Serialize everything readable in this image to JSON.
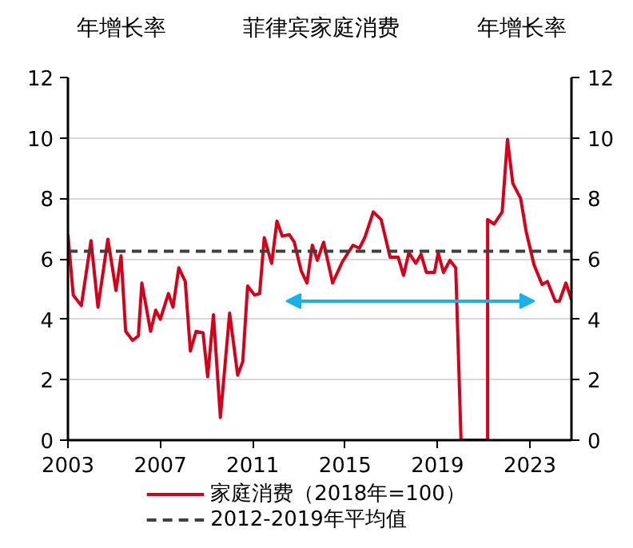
{
  "chart_data": {
    "type": "line",
    "title": "菲律宾家庭消费",
    "ylabel": "年增长率",
    "y2label": "年增长率",
    "xlim": [
      2003,
      2024.8
    ],
    "xticks": [
      2003,
      2007,
      2011,
      2015,
      2019,
      2023
    ],
    "ylim": [
      0,
      12
    ],
    "yticks": [
      0,
      2,
      4,
      6,
      8,
      10,
      12
    ],
    "y2lim": [
      0,
      12
    ],
    "y2ticks": [
      0,
      2,
      4,
      6,
      8,
      10,
      12
    ],
    "grid": "y",
    "legend": "bottom",
    "line_style": "solid",
    "marker": "none",
    "series": [
      {
        "name": "家庭消费（2018年=100）",
        "color": "#d7001b",
        "x": [
          2003.0,
          2003.23,
          2003.58,
          2004.0,
          2004.3,
          2004.73,
          2005.08,
          2005.3,
          2005.5,
          2005.8,
          2006.05,
          2006.2,
          2006.58,
          2006.8,
          2007.0,
          2007.35,
          2007.55,
          2007.8,
          2008.08,
          2008.3,
          2008.55,
          2008.85,
          2009.05,
          2009.3,
          2009.6,
          2010.0,
          2010.35,
          2010.57,
          2010.78,
          2011.08,
          2011.3,
          2011.5,
          2011.82,
          2012.05,
          2012.28,
          2012.58,
          2012.8,
          2013.1,
          2013.35,
          2013.58,
          2013.8,
          2014.07,
          2014.46,
          2014.88,
          2015.34,
          2015.62,
          2015.85,
          2016.22,
          2016.56,
          2016.95,
          2017.3,
          2017.53,
          2017.76,
          2018.06,
          2018.29,
          2018.52,
          2018.87,
          2019.03,
          2019.26,
          2019.54,
          2019.79,
          2020.02,
          2021.17,
          2021.17,
          2021.45,
          2021.8,
          2022.03,
          2022.26,
          2022.6,
          2022.84,
          2023.18,
          2023.53,
          2023.76,
          2024.1,
          2024.28,
          2024.56,
          2024.8
        ],
        "values": [
          6.8,
          4.8,
          4.45,
          6.6,
          4.4,
          6.65,
          4.95,
          6.1,
          3.6,
          3.3,
          3.45,
          5.2,
          3.6,
          4.3,
          4.0,
          4.85,
          4.4,
          5.7,
          5.25,
          2.95,
          3.6,
          3.55,
          2.1,
          4.15,
          0.75,
          4.2,
          2.15,
          2.6,
          5.1,
          4.8,
          4.85,
          6.7,
          5.85,
          7.25,
          6.75,
          6.8,
          6.55,
          5.6,
          5.2,
          6.45,
          5.95,
          6.55,
          5.2,
          5.9,
          6.45,
          6.35,
          6.7,
          7.55,
          7.3,
          6.05,
          6.05,
          5.45,
          6.2,
          5.85,
          6.15,
          5.55,
          5.55,
          6.2,
          5.55,
          5.95,
          5.7,
          0,
          0,
          7.3,
          7.15,
          7.55,
          9.95,
          8.5,
          8.0,
          6.9,
          5.8,
          5.15,
          5.25,
          4.6,
          4.6,
          5.2,
          4.65
        ]
      }
    ],
    "ref_lines": [
      {
        "axis": "y",
        "value": 6.25,
        "label": "2012-2019年平均值",
        "color": "#404040",
        "line_style": "dashed"
      }
    ]
  }
}
